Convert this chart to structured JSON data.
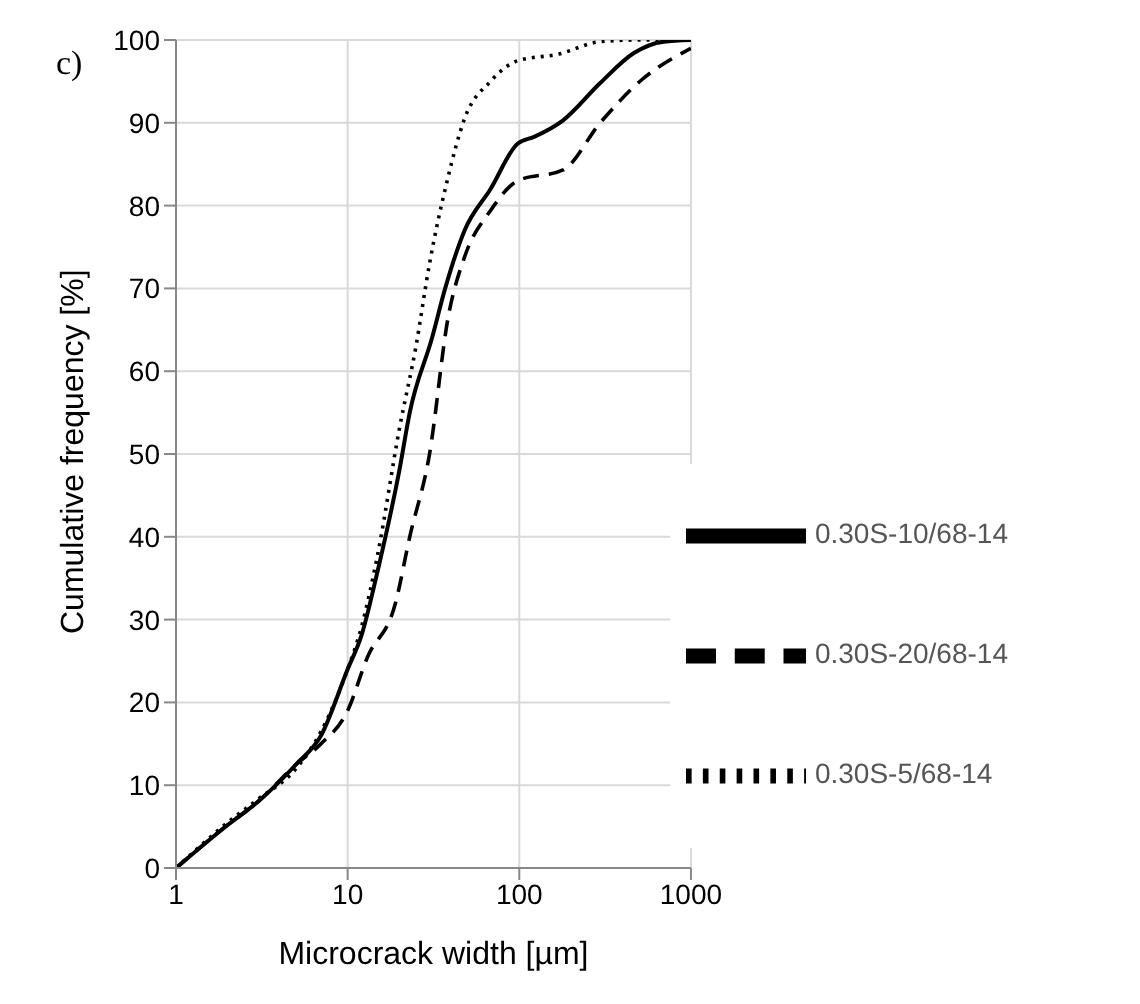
{
  "chart_data": {
    "type": "line",
    "xlabel": "Microcrack width [µm]",
    "ylabel": "Cumulative frequency [%]",
    "annotations": [
      "c)"
    ],
    "log": "x",
    "xlim": [
      1,
      1000
    ],
    "xticks": [
      1,
      10,
      100,
      1000
    ],
    "ylim": [
      0,
      100
    ],
    "yticks": [
      0,
      10,
      20,
      30,
      40,
      50,
      60,
      70,
      80,
      90,
      100
    ],
    "grid": true,
    "legend": "bottom right",
    "marker": "none",
    "series": [
      {
        "name": "0.30S-5/68-14",
        "color": "#000000",
        "line_style": "dotted",
        "x": [
          1,
          2,
          3,
          5,
          7,
          10,
          12,
          15,
          20,
          25,
          30,
          38,
          48,
          68,
          98,
          170,
          296,
          500,
          1000
        ],
        "values": [
          0,
          5.5,
          8.3,
          12,
          16.5,
          24,
          29,
          38,
          53,
          63,
          73,
          83,
          90.5,
          95,
          97.5,
          98.3,
          99.8,
          100,
          100
        ]
      },
      {
        "name": "0.30S-10/68-14",
        "color": "#000000",
        "line_style": "solid",
        "x": [
          1,
          2,
          3,
          5,
          7,
          10,
          12,
          15,
          20,
          23,
          31,
          37,
          48,
          68,
          98,
          122,
          180,
          296,
          463,
          692,
          1000
        ],
        "values": [
          0,
          5.2,
          8,
          12.5,
          16,
          24,
          28,
          36,
          48,
          55,
          64,
          70,
          77,
          82,
          87.5,
          88.3,
          90.3,
          94.8,
          98.4,
          99.8,
          100
        ]
      },
      {
        "name": "0.30S-20/68-14",
        "color": "#000000",
        "line_style": "dashed",
        "x": [
          1,
          2,
          3,
          5,
          7,
          10,
          13,
          19,
          23,
          30,
          38.5,
          48,
          68,
          98,
          180,
          296,
          517,
          1000
        ],
        "values": [
          0,
          5.2,
          8,
          12.5,
          15,
          19,
          25.4,
          32,
          40,
          50,
          66.5,
          73.8,
          79.4,
          83,
          84.3,
          90,
          95.2,
          99
        ]
      }
    ]
  }
}
